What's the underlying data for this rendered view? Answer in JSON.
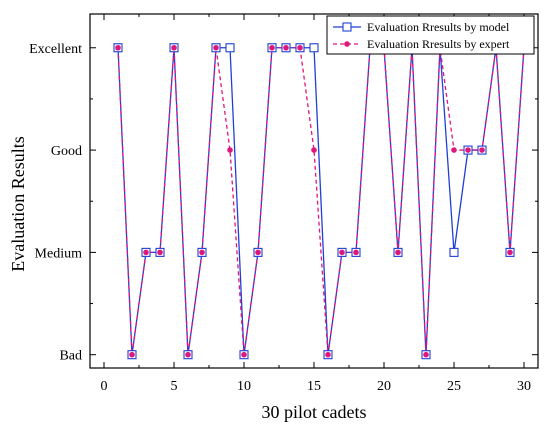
{
  "chart_data": {
    "type": "line",
    "xlabel": "30 pilot cadets",
    "ylabel": "Evaluation Results",
    "xlim": [
      -1,
      31
    ],
    "ylim": [
      0.87,
      4.33
    ],
    "x_ticks": [
      0,
      5,
      10,
      15,
      20,
      25,
      30
    ],
    "y_ticks": [
      1,
      2,
      3,
      4
    ],
    "y_tick_labels": [
      "Bad",
      "Medium",
      "Good",
      "Excellent"
    ],
    "grid": false,
    "legend_position": "top-right",
    "x": [
      1,
      2,
      3,
      4,
      5,
      6,
      7,
      8,
      9,
      10,
      11,
      12,
      13,
      14,
      15,
      16,
      17,
      18,
      19,
      20,
      21,
      22,
      23,
      24,
      25,
      26,
      27,
      28,
      29,
      30
    ],
    "series": [
      {
        "name": "Evaluation Rresults by model",
        "color": "#1f3fd6",
        "line_style": "solid",
        "marker": "open-square",
        "values": [
          4,
          1,
          2,
          2,
          4,
          1,
          2,
          4,
          4,
          1,
          2,
          4,
          4,
          4,
          4,
          1,
          2,
          2,
          4,
          4,
          2,
          4,
          1,
          4,
          2,
          3,
          3,
          4,
          2,
          4
        ]
      },
      {
        "name": "Evaluation Rresults by expert",
        "color": "#e0177a",
        "line_style": "dashed",
        "marker": "filled-circle",
        "values": [
          4,
          1,
          2,
          2,
          4,
          1,
          2,
          4,
          3,
          1,
          2,
          4,
          4,
          4,
          3,
          1,
          2,
          2,
          4,
          4,
          2,
          4,
          1,
          4,
          3,
          3,
          3,
          4,
          2,
          4
        ]
      }
    ]
  }
}
